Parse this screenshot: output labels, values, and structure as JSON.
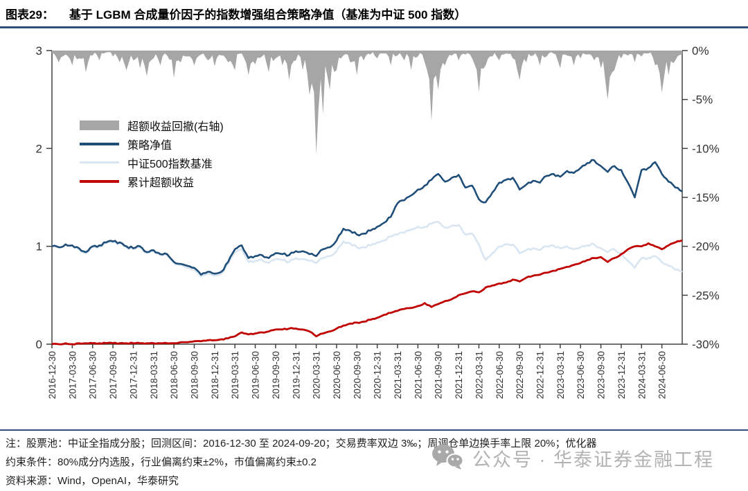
{
  "title": {
    "prefix": "图表29：",
    "text": "基于 LGBM 合成量价因子的指数增强组合策略净值（基准为中证 500 指数）"
  },
  "colors": {
    "rule": "#2d4e7f",
    "axis": "#404040",
    "tick_text": "#333333",
    "drawdown_area": "#a6a6a6",
    "strategy_line": "#1f4e79",
    "benchmark_line": "#d9e6f2",
    "excess_line": "#c00000",
    "watermark": "#b3b3b3"
  },
  "legend": [
    {
      "label": "超额收益回撤(右轴)",
      "swatch": "area",
      "color": "#a6a6a6"
    },
    {
      "label": "策略净值",
      "swatch": "line",
      "color": "#1f4e79"
    },
    {
      "label": "中证500指数基准",
      "swatch": "thinline",
      "color": "#d9e6f2"
    },
    {
      "label": "累计超额收益",
      "swatch": "line",
      "color": "#c00000"
    }
  ],
  "chart_data": {
    "type": "line",
    "title": "基于 LGBM 合成量价因子的指数增强组合策略净值（基准为中证 500 指数）",
    "x_start": "2016-12",
    "x_freq": "monthly",
    "x_tick_labels": [
      "2016-12-30",
      "2017-03-30",
      "2017-06-30",
      "2017-09-30",
      "2017-12-31",
      "2018-03-31",
      "2018-06-30",
      "2018-09-30",
      "2018-12-31",
      "2019-03-31",
      "2019-06-30",
      "2019-09-30",
      "2019-12-31",
      "2020-03-31",
      "2020-06-30",
      "2020-09-30",
      "2020-12-31",
      "2021-03-31",
      "2021-06-30",
      "2021-09-30",
      "2021-12-31",
      "2022-03-31",
      "2022-06-30",
      "2022-09-30",
      "2022-12-31",
      "2023-03-31",
      "2023-06-30",
      "2023-09-30",
      "2023-12-31",
      "2024-03-31",
      "2024-06-30"
    ],
    "left_axis": {
      "ticks": [
        "0",
        "1",
        "2",
        "3"
      ],
      "range": [
        0,
        3
      ]
    },
    "right_axis": {
      "ticks": [
        "0%",
        "-5%",
        "-10%",
        "-15%",
        "-20%",
        "-25%",
        "-30%"
      ],
      "range": [
        0,
        -30
      ]
    },
    "legend_position": "upper-left-inside",
    "grid": false,
    "series": [
      {
        "name": "超额收益回撤(右轴)",
        "axis": "right",
        "style": "area",
        "color": "#a6a6a6",
        "unit": "%",
        "values": [
          -0.3,
          -1.2,
          -0.4,
          -1.5,
          -0.8,
          -2.2,
          -0.5,
          -1.0,
          -0.2,
          -0.6,
          -1.2,
          -2.0,
          -1.0,
          -1.8,
          -2.6,
          -0.8,
          -1.5,
          -0.5,
          -2.8,
          -1.2,
          -0.6,
          -1.5,
          -0.4,
          -1.0,
          -1.6,
          -0.5,
          -1.2,
          -2.0,
          -0.3,
          -2.5,
          -1.4,
          -0.6,
          -2.2,
          -0.8,
          -1.5,
          -3.0,
          -1.0,
          -2.0,
          -4.5,
          -10.6,
          -6.5,
          -4.0,
          -2.0,
          -0.5,
          -1.2,
          -2.5,
          -1.0,
          -0.4,
          -0.8,
          -0.3,
          -1.5,
          -0.5,
          -1.0,
          -2.0,
          -0.6,
          -1.2,
          -7.2,
          -4.0,
          -1.5,
          -0.5,
          -1.0,
          -0.4,
          -0.8,
          -4.2,
          -1.5,
          -0.6,
          -1.0,
          -0.3,
          -0.8,
          -3.0,
          -1.2,
          -0.5,
          -1.5,
          -0.6,
          -0.3,
          -1.8,
          -0.5,
          -1.5,
          -0.8,
          -0.4,
          -1.0,
          -1.8,
          -5.0,
          -2.0,
          -0.8,
          -0.5,
          -1.2,
          -0.6,
          -0.3,
          -1.5,
          -4.3,
          -2.5,
          -1.0,
          -0.4
        ]
      },
      {
        "name": "策略净值",
        "axis": "left",
        "style": "line",
        "color": "#1f4e79",
        "values": [
          1.0,
          0.99,
          1.02,
          1.01,
          0.98,
          0.94,
          1.0,
          1.01,
          1.04,
          1.05,
          1.04,
          1.0,
          0.98,
          1.0,
          0.94,
          0.96,
          0.92,
          0.92,
          0.84,
          0.82,
          0.8,
          0.78,
          0.71,
          0.74,
          0.72,
          0.74,
          0.84,
          0.97,
          1.01,
          0.88,
          0.9,
          0.91,
          0.88,
          0.93,
          0.92,
          0.91,
          0.95,
          0.95,
          0.92,
          0.9,
          0.97,
          0.99,
          1.06,
          1.18,
          1.16,
          1.12,
          1.13,
          1.16,
          1.2,
          1.24,
          1.3,
          1.44,
          1.47,
          1.52,
          1.58,
          1.62,
          1.68,
          1.74,
          1.66,
          1.7,
          1.73,
          1.6,
          1.62,
          1.48,
          1.45,
          1.55,
          1.65,
          1.68,
          1.7,
          1.58,
          1.63,
          1.67,
          1.65,
          1.72,
          1.74,
          1.71,
          1.77,
          1.75,
          1.8,
          1.85,
          1.88,
          1.82,
          1.76,
          1.82,
          1.78,
          1.65,
          1.5,
          1.78,
          1.8,
          1.86,
          1.74,
          1.66,
          1.6,
          1.56
        ]
      },
      {
        "name": "中证500指数基准",
        "axis": "left",
        "style": "line",
        "color": "#d9e6f2",
        "values": [
          1.0,
          0.99,
          1.02,
          1.01,
          0.97,
          0.93,
          0.99,
          1.0,
          1.03,
          1.04,
          1.03,
          0.99,
          0.97,
          0.99,
          0.93,
          0.95,
          0.91,
          0.91,
          0.83,
          0.81,
          0.78,
          0.76,
          0.69,
          0.72,
          0.7,
          0.72,
          0.82,
          0.94,
          0.97,
          0.84,
          0.85,
          0.86,
          0.83,
          0.87,
          0.86,
          0.84,
          0.88,
          0.87,
          0.85,
          0.83,
          0.88,
          0.9,
          0.95,
          1.05,
          1.03,
          0.99,
          0.99,
          1.01,
          1.04,
          1.06,
          1.1,
          1.12,
          1.14,
          1.17,
          1.2,
          1.2,
          1.23,
          1.25,
          1.19,
          1.21,
          1.22,
          1.12,
          1.13,
          1.02,
          0.86,
          0.93,
          1.0,
          1.02,
          1.02,
          0.93,
          0.96,
          0.98,
          0.96,
          1.0,
          1.01,
          0.98,
          1.0,
          0.97,
          0.99,
          1.01,
          1.02,
          0.98,
          0.94,
          0.97,
          0.93,
          0.85,
          0.78,
          0.88,
          0.88,
          0.9,
          0.84,
          0.8,
          0.76,
          0.74
        ]
      },
      {
        "name": "累计超额收益",
        "axis": "left",
        "style": "line",
        "color": "#c00000",
        "values": [
          0.0,
          0.0,
          0.01,
          0.0,
          0.01,
          0.01,
          0.01,
          0.01,
          0.01,
          0.01,
          0.01,
          0.01,
          0.01,
          0.01,
          0.01,
          0.01,
          0.01,
          0.01,
          0.01,
          0.02,
          0.02,
          0.03,
          0.03,
          0.04,
          0.04,
          0.05,
          0.06,
          0.08,
          0.12,
          0.1,
          0.11,
          0.12,
          0.13,
          0.15,
          0.15,
          0.16,
          0.16,
          0.15,
          0.13,
          0.08,
          0.11,
          0.13,
          0.16,
          0.19,
          0.21,
          0.22,
          0.23,
          0.25,
          0.27,
          0.3,
          0.32,
          0.34,
          0.36,
          0.37,
          0.39,
          0.42,
          0.38,
          0.41,
          0.44,
          0.46,
          0.5,
          0.52,
          0.54,
          0.53,
          0.58,
          0.6,
          0.62,
          0.63,
          0.66,
          0.64,
          0.68,
          0.7,
          0.71,
          0.73,
          0.75,
          0.77,
          0.79,
          0.81,
          0.83,
          0.86,
          0.88,
          0.89,
          0.84,
          0.88,
          0.92,
          0.97,
          1.0,
          1.0,
          1.03,
          1.0,
          0.97,
          1.01,
          1.04,
          1.06
        ]
      }
    ]
  },
  "notes": {
    "line1": "注：股票池：中证全指成分股；回测区间：2016-12-30 至 2024-09-20；交易费率双边 3‰；周调仓单边换手率上限 20%；优化器",
    "line2": "约束条件：80%成分内选股，行业偏离约束±2%，市值偏离约束±0.2",
    "line3": "资料来源：Wind，OpenAI，华泰研究"
  },
  "watermark": {
    "text": "公众号 · 华泰证券金融工程"
  }
}
